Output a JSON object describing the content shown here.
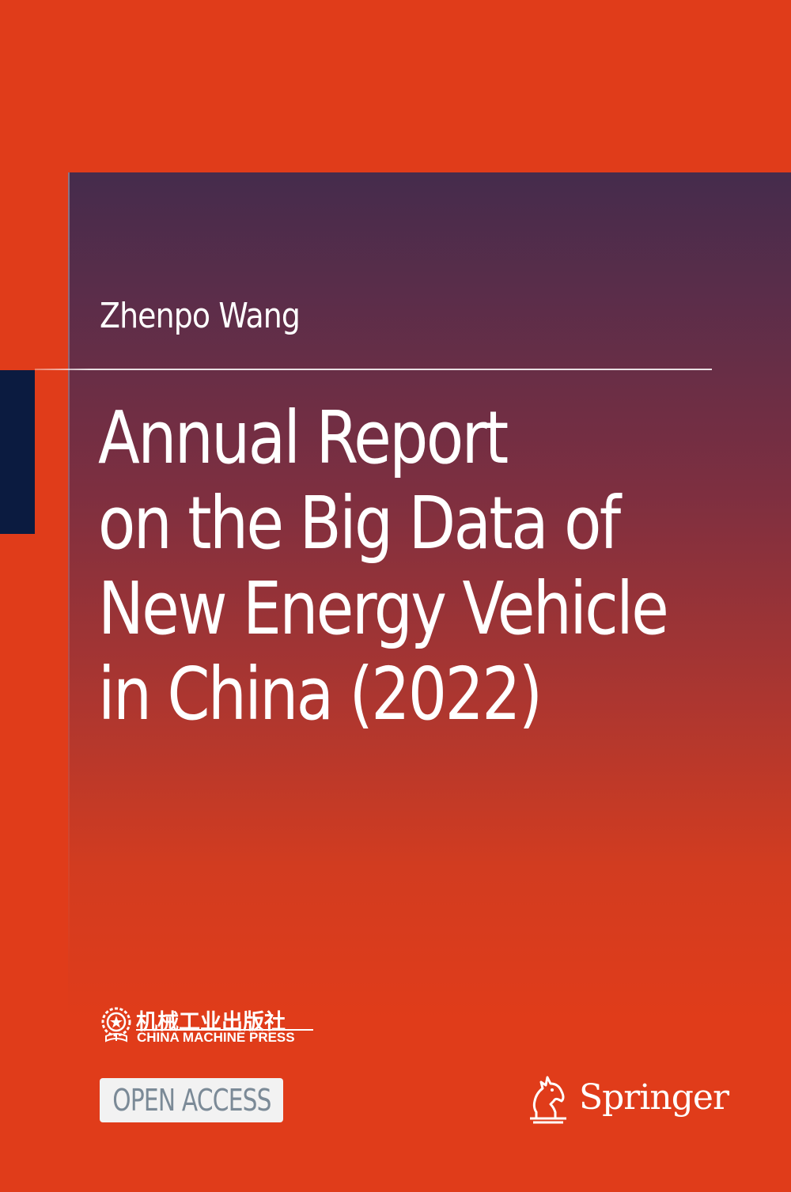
{
  "book": {
    "author": "Zhenpo Wang",
    "title_lines": [
      "Annual Report",
      "on the Big Data of",
      "New Energy Vehicle",
      "in China (2022)"
    ]
  },
  "co_publisher": {
    "name_cn": "机械工业出版社",
    "name_en": "CHINA MACHINE PRESS",
    "emblem_icon": "gear-star-emblem-icon"
  },
  "badge": {
    "label": "OPEN ACCESS"
  },
  "publisher": {
    "name": "Springer",
    "logo_icon": "springer-horse-icon"
  },
  "colors": {
    "background": "#e03c1a",
    "panel_top": "#452c4c",
    "tab": "#0b1b40",
    "text": "#ffffff",
    "badge_text": "#7b8a97"
  }
}
